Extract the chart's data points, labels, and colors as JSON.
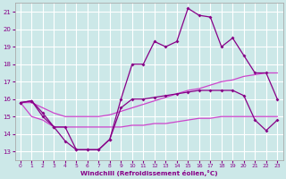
{
  "xlabel": "Windchill (Refroidissement éolien,°C)",
  "x_values": [
    0,
    1,
    2,
    3,
    4,
    5,
    6,
    7,
    8,
    9,
    10,
    11,
    12,
    13,
    14,
    15,
    16,
    17,
    18,
    19,
    20,
    21,
    22,
    23
  ],
  "main_line": [
    15.8,
    15.9,
    15.0,
    14.4,
    13.6,
    13.1,
    13.1,
    13.1,
    13.7,
    16.0,
    18.0,
    18.0,
    19.3,
    19.0,
    19.3,
    21.2,
    20.8,
    20.7,
    19.0,
    19.5,
    18.5,
    17.5,
    17.5,
    16.0
  ],
  "upper_band": [
    15.8,
    15.8,
    15.5,
    15.2,
    15.0,
    15.0,
    15.0,
    15.0,
    15.1,
    15.3,
    15.5,
    15.7,
    15.9,
    16.1,
    16.3,
    16.5,
    16.6,
    16.8,
    17.0,
    17.1,
    17.3,
    17.4,
    17.5,
    17.5
  ],
  "lower_band": [
    15.8,
    15.0,
    14.8,
    14.4,
    14.4,
    14.4,
    14.4,
    14.4,
    14.4,
    14.4,
    14.5,
    14.5,
    14.6,
    14.6,
    14.7,
    14.8,
    14.9,
    14.9,
    15.0,
    15.0,
    15.0,
    15.0,
    15.0,
    15.0
  ],
  "mid_line": [
    15.8,
    15.9,
    15.2,
    14.4,
    14.4,
    13.1,
    13.1,
    13.1,
    13.7,
    15.5,
    16.0,
    16.0,
    16.1,
    16.2,
    16.3,
    16.4,
    16.5,
    16.5,
    16.5,
    16.5,
    16.2,
    14.8,
    14.2,
    14.8
  ],
  "ylim": [
    12.5,
    21.5
  ],
  "xlim": [
    -0.5,
    23.5
  ],
  "yticks": [
    13,
    14,
    15,
    16,
    17,
    18,
    19,
    20,
    21
  ],
  "xticks": [
    0,
    1,
    2,
    3,
    4,
    5,
    6,
    7,
    8,
    9,
    10,
    11,
    12,
    13,
    14,
    15,
    16,
    17,
    18,
    19,
    20,
    21,
    22,
    23
  ],
  "bg_color": "#cce8e8",
  "grid_color": "#ffffff",
  "dark_purple": "#880088",
  "light_purple": "#cc44cc",
  "text_color": "#880088",
  "axis_color": "#aaaaaa"
}
